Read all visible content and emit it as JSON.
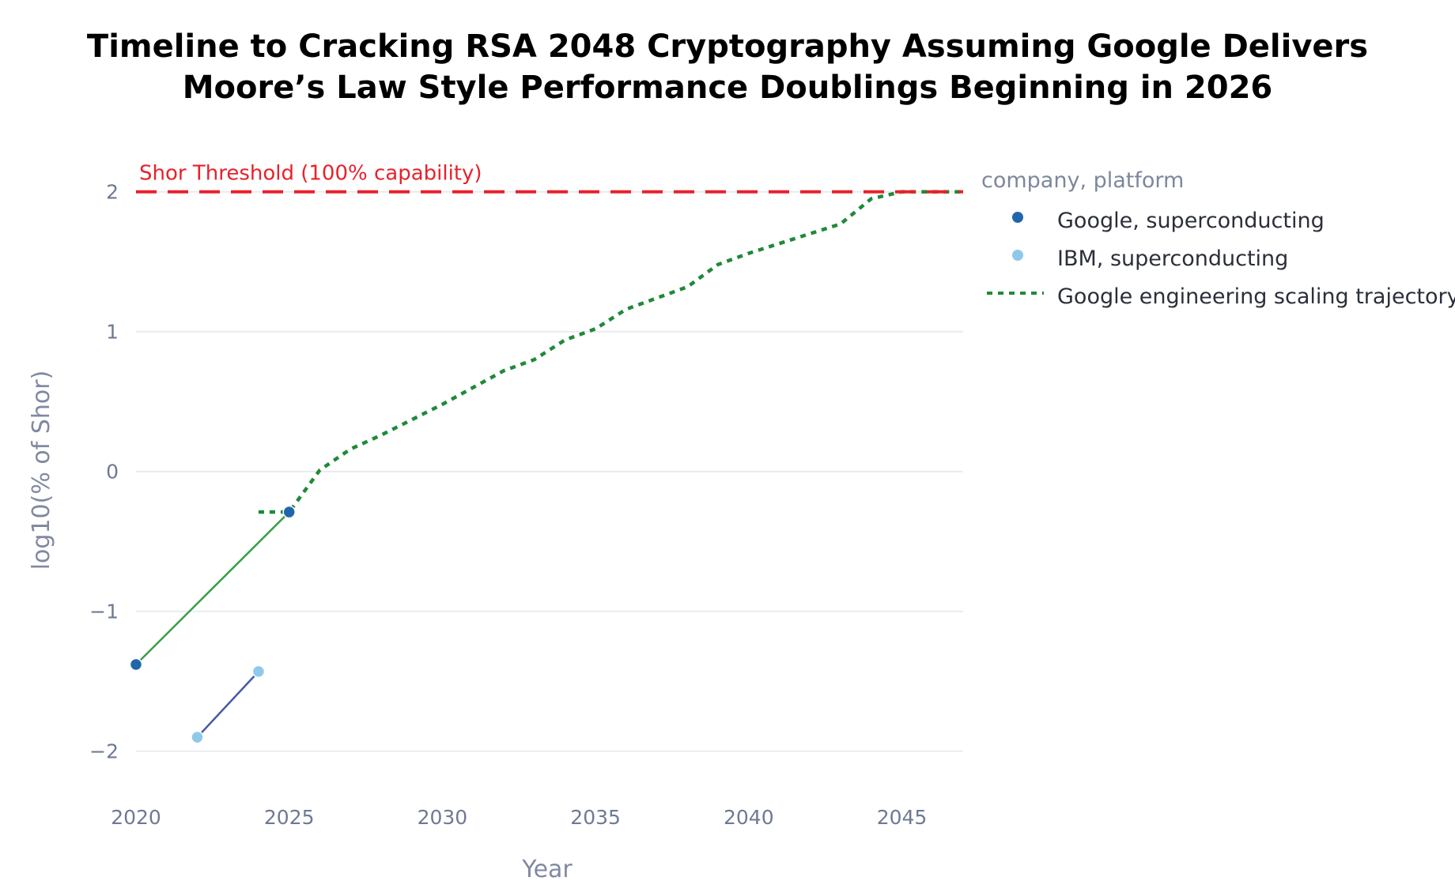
{
  "chart_data": {
    "type": "line",
    "title_lines": [
      "Timeline to Cracking RSA 2048 Cryptography Assuming Google Delivers",
      "Moore’s Law Style Performance Doublings Beginning in 2026"
    ],
    "xlabel": "Year",
    "ylabel": "log10(% of Shor)",
    "xlim": [
      2020,
      2047
    ],
    "ylim": [
      -2.25,
      2.1
    ],
    "xticks": [
      2020,
      2025,
      2030,
      2035,
      2040,
      2045
    ],
    "yticks": [
      2,
      1,
      0,
      -1,
      -2
    ],
    "ytick_labels": [
      "2",
      "1",
      "0",
      "−1",
      "−2"
    ],
    "legend": {
      "title": "company, platform",
      "position": "right",
      "entries": [
        {
          "label": "Google, superconducting",
          "symbol": "dot",
          "color": "#2166ac"
        },
        {
          "label": "IBM, superconducting",
          "symbol": "dot",
          "color": "#8ec9ec"
        },
        {
          "label": "Google engineering scaling trajectory",
          "symbol": "dotted-line",
          "color": "#1f8a3a"
        }
      ]
    },
    "threshold": {
      "label": "Shor Threshold (100% capability)",
      "value": 2,
      "color": "#e8212b"
    },
    "series": [
      {
        "name": "Google, superconducting",
        "type": "line+markers",
        "line_color": "#3aa046",
        "marker_color": "#2166ac",
        "points": [
          {
            "x": 2020,
            "y": -1.38
          },
          {
            "x": 2025,
            "y": -0.29
          }
        ]
      },
      {
        "name": "IBM, superconducting",
        "type": "line+markers",
        "line_color": "#4a57a6",
        "marker_color": "#8ec9ec",
        "points": [
          {
            "x": 2022,
            "y": -1.9
          },
          {
            "x": 2024,
            "y": -1.43
          }
        ]
      },
      {
        "name": "Google engineering scaling trajectory",
        "type": "dotted-line",
        "line_color": "#1f8a3a",
        "points": [
          {
            "x": 2024,
            "y": -0.29
          },
          {
            "x": 2025,
            "y": -0.29
          },
          {
            "x": 2026,
            "y": 0.01
          },
          {
            "x": 2027,
            "y": 0.16
          },
          {
            "x": 2028,
            "y": 0.26
          },
          {
            "x": 2029,
            "y": 0.37
          },
          {
            "x": 2030,
            "y": 0.48
          },
          {
            "x": 2031,
            "y": 0.6
          },
          {
            "x": 2032,
            "y": 0.72
          },
          {
            "x": 2033,
            "y": 0.8
          },
          {
            "x": 2034,
            "y": 0.94
          },
          {
            "x": 2035,
            "y": 1.02
          },
          {
            "x": 2036,
            "y": 1.16
          },
          {
            "x": 2037,
            "y": 1.24
          },
          {
            "x": 2038,
            "y": 1.32
          },
          {
            "x": 2039,
            "y": 1.48
          },
          {
            "x": 2040,
            "y": 1.56
          },
          {
            "x": 2041,
            "y": 1.63
          },
          {
            "x": 2042,
            "y": 1.7
          },
          {
            "x": 2043,
            "y": 1.77
          },
          {
            "x": 2044,
            "y": 1.95
          },
          {
            "x": 2045,
            "y": 2.0
          },
          {
            "x": 2047,
            "y": 2.0
          }
        ]
      }
    ]
  }
}
